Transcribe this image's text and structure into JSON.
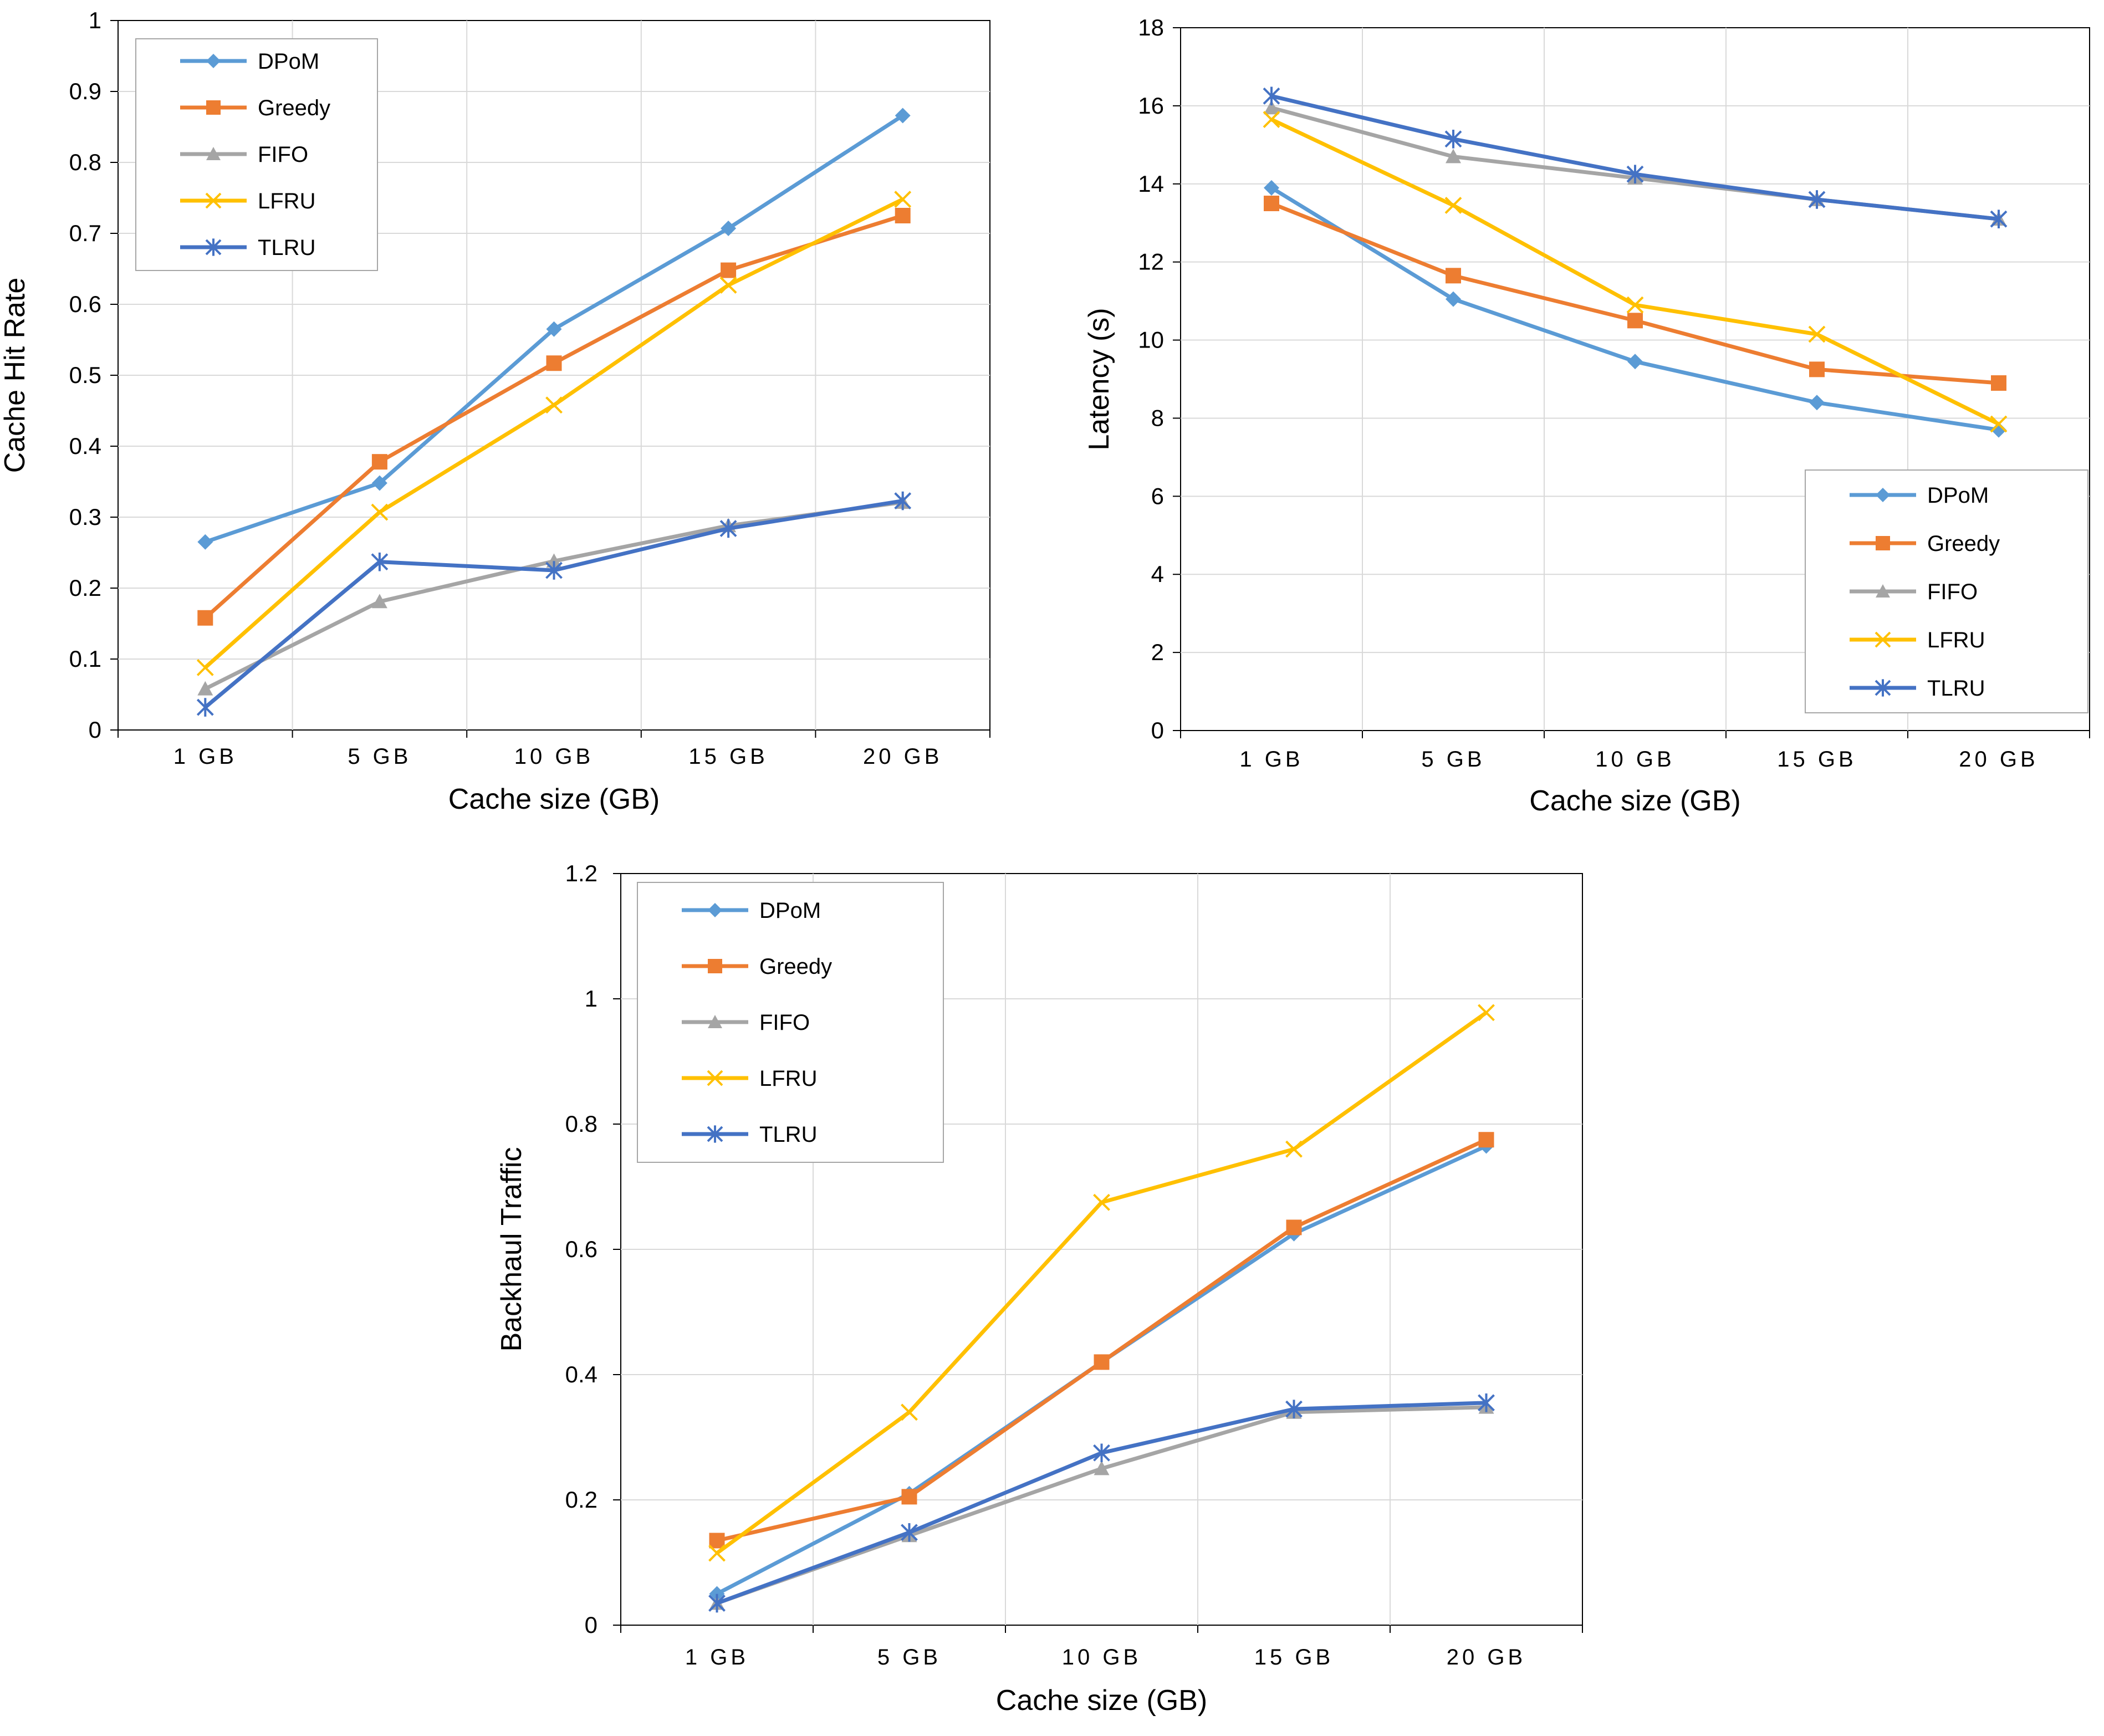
{
  "series_style": {
    "DPoM": {
      "color": "#5B9BD5",
      "marker": "diamond"
    },
    "Greedy": {
      "color": "#ED7D31",
      "marker": "square"
    },
    "FIFO": {
      "color": "#A5A5A5",
      "marker": "triangle"
    },
    "LFRU": {
      "color": "#FFC000",
      "marker": "x"
    },
    "TLRU": {
      "color": "#4472C4",
      "marker": "asterisk"
    }
  },
  "chart_data": [
    {
      "type": "line",
      "categories": [
        "1 GB",
        "5 GB",
        "10 GB",
        "15 GB",
        "20 GB"
      ],
      "xlabel": "Cache size (GB)",
      "ylabel": "Cache Hit Rate",
      "ylim": [
        0,
        1
      ],
      "yticks": [
        0,
        0.1,
        0.2,
        0.3,
        0.4,
        0.5,
        0.6,
        0.7,
        0.8,
        0.9,
        1
      ],
      "ytick_labels": [
        "0",
        "0.1",
        "0.2",
        "0.3",
        "0.4",
        "0.5",
        "0.6",
        "0.7",
        "0.8",
        "0.9",
        "1"
      ],
      "grid": true,
      "legend_position": "top-left",
      "series": [
        {
          "name": "DPoM",
          "values": [
            0.265,
            0.348,
            0.565,
            0.707,
            0.866
          ]
        },
        {
          "name": "Greedy",
          "values": [
            0.158,
            0.378,
            0.517,
            0.648,
            0.725
          ]
        },
        {
          "name": "FIFO",
          "values": [
            0.058,
            0.181,
            0.238,
            0.288,
            0.321
          ]
        },
        {
          "name": "LFRU",
          "values": [
            0.088,
            0.307,
            0.458,
            0.627,
            0.748
          ]
        },
        {
          "name": "TLRU",
          "values": [
            0.032,
            0.237,
            0.225,
            0.284,
            0.323
          ]
        }
      ]
    },
    {
      "type": "line",
      "categories": [
        "1 GB",
        "5 GB",
        "10 GB",
        "15 GB",
        "20 GB"
      ],
      "xlabel": "Cache size (GB)",
      "ylabel": "Latency (s)",
      "ylim": [
        0,
        18
      ],
      "yticks": [
        0,
        2,
        4,
        6,
        8,
        10,
        12,
        14,
        16,
        18
      ],
      "ytick_labels": [
        "0",
        "2",
        "4",
        "6",
        "8",
        "10",
        "12",
        "14",
        "16",
        "18"
      ],
      "grid": true,
      "legend_position": "bottom-right",
      "series": [
        {
          "name": "DPoM",
          "values": [
            13.9,
            11.05,
            9.45,
            8.4,
            7.7
          ]
        },
        {
          "name": "Greedy",
          "values": [
            13.5,
            11.65,
            10.5,
            9.25,
            8.9
          ]
        },
        {
          "name": "FIFO",
          "values": [
            15.95,
            14.7,
            14.15,
            13.6,
            13.1
          ]
        },
        {
          "name": "LFRU",
          "values": [
            15.65,
            13.45,
            10.9,
            10.15,
            7.85
          ]
        },
        {
          "name": "TLRU",
          "values": [
            16.25,
            15.15,
            14.25,
            13.6,
            13.1
          ]
        }
      ]
    },
    {
      "type": "line",
      "categories": [
        "1 GB",
        "5 GB",
        "10 GB",
        "15 GB",
        "20 GB"
      ],
      "xlabel": "Cache size (GB)",
      "ylabel": "Backhaul Traffic",
      "ylim": [
        0,
        1.2
      ],
      "yticks": [
        0,
        0.2,
        0.4,
        0.6,
        0.8,
        1,
        1.2
      ],
      "ytick_labels": [
        "0",
        "0.2",
        "0.4",
        "0.6",
        "0.8",
        "1",
        "1.2"
      ],
      "grid": true,
      "legend_position": "top-left",
      "series": [
        {
          "name": "DPoM",
          "values": [
            0.05,
            0.21,
            0.42,
            0.625,
            0.765
          ]
        },
        {
          "name": "Greedy",
          "values": [
            0.135,
            0.205,
            0.42,
            0.635,
            0.775
          ]
        },
        {
          "name": "FIFO",
          "values": [
            0.035,
            0.143,
            0.25,
            0.34,
            0.348
          ]
        },
        {
          "name": "LFRU",
          "values": [
            0.115,
            0.34,
            0.675,
            0.76,
            0.978
          ]
        },
        {
          "name": "TLRU",
          "values": [
            0.035,
            0.148,
            0.275,
            0.345,
            0.355
          ]
        }
      ]
    }
  ]
}
